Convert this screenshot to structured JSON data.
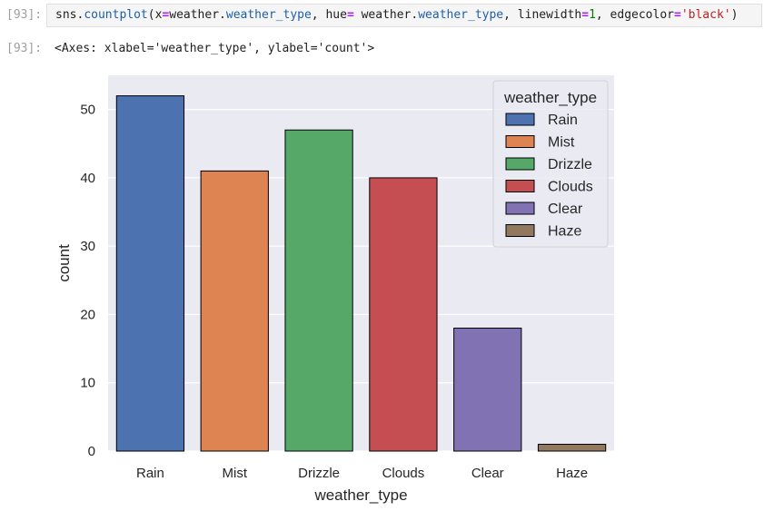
{
  "cell": {
    "in_prompt": "[93]:",
    "out_prompt": "[93]:",
    "code_tokens": [
      {
        "t": "sns",
        "c": "name"
      },
      {
        "t": ".",
        "c": "punct"
      },
      {
        "t": "countplot",
        "c": "attr"
      },
      {
        "t": "(x",
        "c": "punct"
      },
      {
        "t": "=",
        "c": "op"
      },
      {
        "t": "weather",
        "c": "name"
      },
      {
        "t": ".",
        "c": "punct"
      },
      {
        "t": "weather_type",
        "c": "attr"
      },
      {
        "t": ", hue",
        "c": "punct"
      },
      {
        "t": "=",
        "c": "op"
      },
      {
        "t": " weather",
        "c": "name"
      },
      {
        "t": ".",
        "c": "punct"
      },
      {
        "t": "weather_type",
        "c": "attr"
      },
      {
        "t": ", linewidth",
        "c": "punct"
      },
      {
        "t": "=",
        "c": "op"
      },
      {
        "t": "1",
        "c": "num"
      },
      {
        "t": ", edgecolor",
        "c": "punct"
      },
      {
        "t": "=",
        "c": "op"
      },
      {
        "t": "'black'",
        "c": "str"
      },
      {
        "t": ")",
        "c": "punct"
      }
    ],
    "output_text": "<Axes: xlabel='weather_type', ylabel='count'>"
  },
  "chart_data": {
    "type": "bar",
    "categories": [
      "Rain",
      "Mist",
      "Drizzle",
      "Clouds",
      "Clear",
      "Haze"
    ],
    "values": [
      52,
      41,
      47,
      40,
      18,
      1
    ],
    "colors": [
      "#4c72b0",
      "#dd8452",
      "#55a868",
      "#c44e52",
      "#8172b3",
      "#937860"
    ],
    "xlabel": "weather_type",
    "ylabel": "count",
    "ylim": [
      0,
      55
    ],
    "yticks": [
      0,
      10,
      20,
      30,
      40,
      50
    ],
    "grid": true,
    "background": "#eaeaf2",
    "edgecolor": "black",
    "legend": {
      "title": "weather_type",
      "placement": "top-right",
      "entries": [
        "Rain",
        "Mist",
        "Drizzle",
        "Clouds",
        "Clear",
        "Haze"
      ]
    }
  }
}
